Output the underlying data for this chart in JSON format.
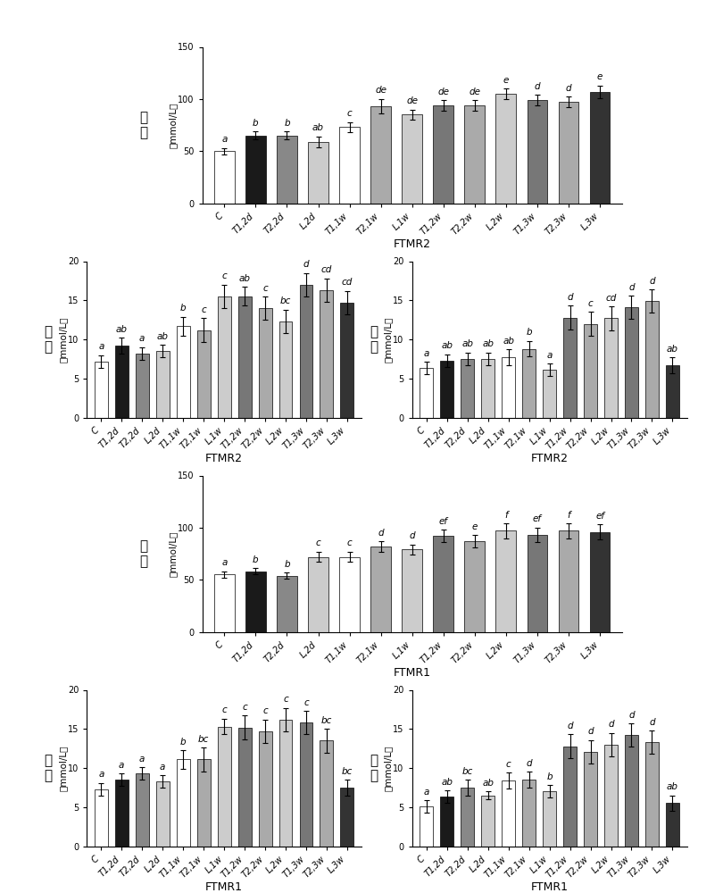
{
  "categories": [
    "C",
    "T1,2d",
    "T2,2d",
    "L,2d",
    "T1,1w",
    "T2,1w",
    "L,1w",
    "T1,2w",
    "T2,2w",
    "L,2w",
    "T1,3w",
    "T2,3w",
    "L,3w"
  ],
  "ftmr2_acetic_values": [
    50,
    65,
    65,
    59,
    73,
    93,
    85,
    94,
    94,
    105,
    99,
    97,
    107
  ],
  "ftmr2_acetic_errors": [
    3,
    4,
    4,
    5,
    5,
    7,
    5,
    5,
    5,
    5,
    5,
    5,
    6
  ],
  "ftmr2_acetic_labels": [
    "a",
    "b",
    "b",
    "ab",
    "c",
    "de",
    "de",
    "de",
    "de",
    "e",
    "d",
    "d",
    "e"
  ],
  "ftmr2_propionic_values": [
    7.2,
    9.2,
    8.2,
    8.5,
    11.7,
    11.2,
    15.5,
    15.5,
    14.0,
    12.3,
    17.0,
    16.3,
    14.7
  ],
  "ftmr2_propionic_errors": [
    0.8,
    1.0,
    0.8,
    0.8,
    1.2,
    1.5,
    1.5,
    1.2,
    1.5,
    1.5,
    1.5,
    1.5,
    1.5
  ],
  "ftmr2_propionic_labels": [
    "a",
    "ab",
    "a",
    "ab",
    "b",
    "c",
    "c",
    "ab",
    "c",
    "bc",
    "d",
    "cd",
    "cd"
  ],
  "ftmr2_butyric_values": [
    6.3,
    7.3,
    7.5,
    7.5,
    7.7,
    8.8,
    6.1,
    12.8,
    12.0,
    12.7,
    14.1,
    14.9,
    6.7
  ],
  "ftmr2_butyric_errors": [
    0.8,
    0.8,
    0.8,
    0.8,
    1.0,
    1.0,
    0.8,
    1.5,
    1.5,
    1.5,
    1.5,
    1.5,
    1.0
  ],
  "ftmr2_butyric_labels": [
    "a",
    "ab",
    "ab",
    "ab",
    "ab",
    "b",
    "a",
    "d",
    "c",
    "cd",
    "d",
    "d",
    "ab"
  ],
  "ftmr1_acetic_values": [
    55,
    58,
    54,
    72,
    72,
    82,
    79,
    92,
    87,
    97,
    93,
    97,
    96
  ],
  "ftmr1_acetic_errors": [
    3,
    3,
    3,
    5,
    5,
    5,
    5,
    6,
    6,
    7,
    7,
    7,
    7
  ],
  "ftmr1_acetic_labels": [
    "a",
    "b",
    "b",
    "c",
    "c",
    "d",
    "d",
    "ef",
    "e",
    "f",
    "ef",
    "f",
    "ef"
  ],
  "ftmr1_propionic_values": [
    7.3,
    8.5,
    9.3,
    8.3,
    11.1,
    11.1,
    15.3,
    15.2,
    14.7,
    16.2,
    15.8,
    13.5,
    7.5
  ],
  "ftmr1_propionic_errors": [
    0.8,
    0.8,
    0.8,
    0.8,
    1.2,
    1.5,
    1.0,
    1.5,
    1.5,
    1.5,
    1.5,
    1.5,
    1.0
  ],
  "ftmr1_propionic_labels": [
    "a",
    "a",
    "a",
    "a",
    "b",
    "bc",
    "c",
    "c",
    "c",
    "c",
    "c",
    "bc",
    "bc"
  ],
  "ftmr1_butyric_values": [
    5.1,
    6.3,
    7.5,
    6.5,
    8.4,
    8.5,
    7.0,
    12.8,
    12.1,
    13.0,
    14.2,
    13.3,
    5.5
  ],
  "ftmr1_butyric_errors": [
    0.8,
    0.8,
    1.0,
    0.5,
    1.0,
    1.0,
    0.8,
    1.5,
    1.5,
    1.5,
    1.5,
    1.5,
    1.0
  ],
  "ftmr1_butyric_labels": [
    "a",
    "ab",
    "bc",
    "ab",
    "c",
    "d",
    "b",
    "d",
    "d",
    "d",
    "d",
    "d",
    "ab"
  ],
  "bar_colors": [
    "#ffffff",
    "#1a1a1a",
    "#888888",
    "#cccccc",
    "#ffffff",
    "#aaaaaa",
    "#cccccc",
    "#777777",
    "#aaaaaa",
    "#cccccc",
    "#777777",
    "#aaaaaa",
    "#333333"
  ],
  "xticklabels": [
    "C",
    "T1,2d",
    "T2,2d",
    "L,2d",
    "T1,1w",
    "T2,1w",
    "L,1w",
    "T1,2w",
    "T2,2w",
    "L,2w",
    "T1,3w",
    "T2,3w",
    "L,3w"
  ],
  "bar_width": 0.65
}
